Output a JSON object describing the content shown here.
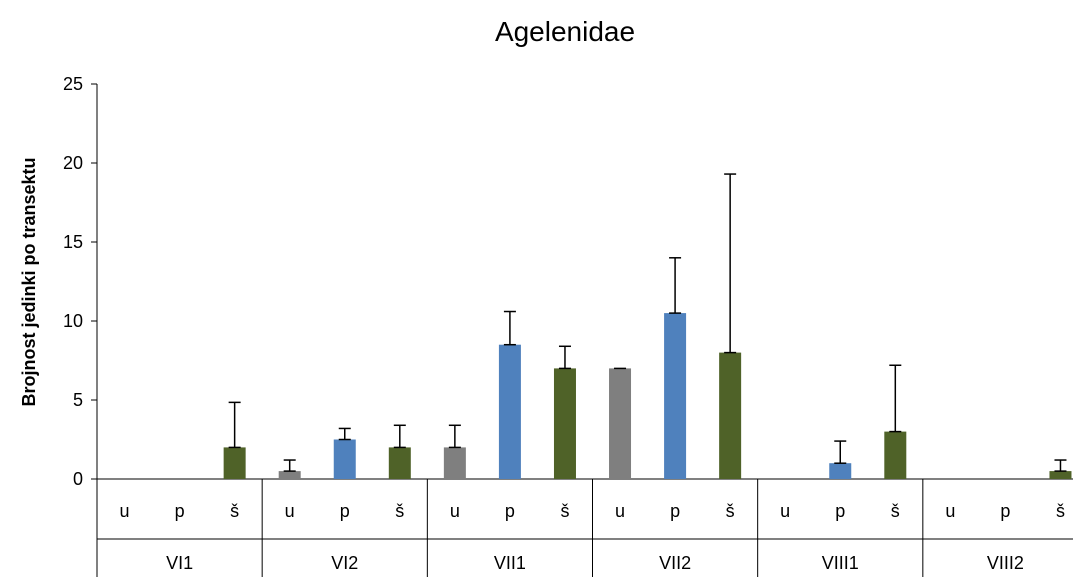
{
  "chart_data": {
    "type": "bar",
    "title": "Agelenidae",
    "ylabel": "Brojnost jedinki po transektu",
    "xlabel": "",
    "ylim": [
      0,
      25
    ],
    "yticks": [
      0,
      5,
      10,
      15,
      20,
      25
    ],
    "groups": [
      {
        "label": "VI1",
        "bars": [
          {
            "label": "u",
            "value": 0,
            "error": 0,
            "color": "#7f7f7f"
          },
          {
            "label": "p",
            "value": 0,
            "error": 0,
            "color": "#4f81bd"
          },
          {
            "label": "š",
            "value": 2,
            "error": 2.85,
            "color": "#4f6228"
          }
        ]
      },
      {
        "label": "VI2",
        "bars": [
          {
            "label": "u",
            "value": 0.5,
            "error": 0.7,
            "color": "#7f7f7f"
          },
          {
            "label": "p",
            "value": 2.5,
            "error": 0.7,
            "color": "#4f81bd"
          },
          {
            "label": "š",
            "value": 2,
            "error": 1.4,
            "color": "#4f6228"
          }
        ]
      },
      {
        "label": "VII1",
        "bars": [
          {
            "label": "u",
            "value": 2,
            "error": 1.4,
            "color": "#7f7f7f"
          },
          {
            "label": "p",
            "value": 8.5,
            "error": 2.1,
            "color": "#4f81bd"
          },
          {
            "label": "š",
            "value": 7,
            "error": 1.4,
            "color": "#4f6228"
          }
        ]
      },
      {
        "label": "VII2",
        "bars": [
          {
            "label": "u",
            "value": 7,
            "error": 0,
            "color": "#7f7f7f"
          },
          {
            "label": "p",
            "value": 10.5,
            "error": 3.5,
            "color": "#4f81bd"
          },
          {
            "label": "š",
            "value": 8,
            "error": 11.3,
            "color": "#4f6228"
          }
        ]
      },
      {
        "label": "VIII1",
        "bars": [
          {
            "label": "u",
            "value": 0,
            "error": 0,
            "color": "#7f7f7f"
          },
          {
            "label": "p",
            "value": 1,
            "error": 1.4,
            "color": "#4f81bd"
          },
          {
            "label": "š",
            "value": 3,
            "error": 4.2,
            "color": "#4f6228"
          }
        ]
      },
      {
        "label": "VIII2",
        "bars": [
          {
            "label": "u",
            "value": 0,
            "error": 0,
            "color": "#7f7f7f"
          },
          {
            "label": "p",
            "value": 0,
            "error": 0,
            "color": "#4f81bd"
          },
          {
            "label": "š",
            "value": 0.5,
            "error": 0.7,
            "color": "#4f6228"
          }
        ]
      }
    ]
  }
}
